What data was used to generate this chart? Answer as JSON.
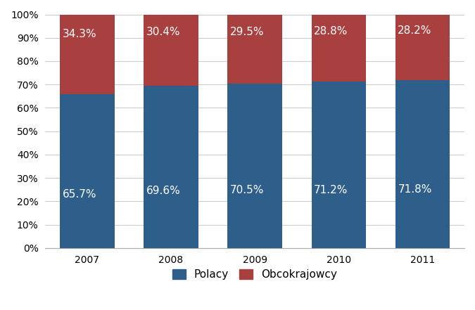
{
  "years": [
    "2007",
    "2008",
    "2009",
    "2010",
    "2011"
  ],
  "polacy": [
    65.7,
    69.6,
    70.5,
    71.2,
    71.8
  ],
  "obcokrajowcy": [
    34.3,
    30.4,
    29.5,
    28.8,
    28.2
  ],
  "color_polacy": "#2E5F8A",
  "color_obco": "#A84040",
  "label_polacy": "Polacy",
  "label_obco": "Obcokrajowcy",
  "ylim": [
    0,
    100
  ],
  "yticks": [
    0,
    10,
    20,
    30,
    40,
    50,
    60,
    70,
    80,
    90,
    100
  ],
  "text_color": "#FFFFFF",
  "font_size_bar": 11,
  "legend_fontsize": 11,
  "bar_width": 0.65
}
